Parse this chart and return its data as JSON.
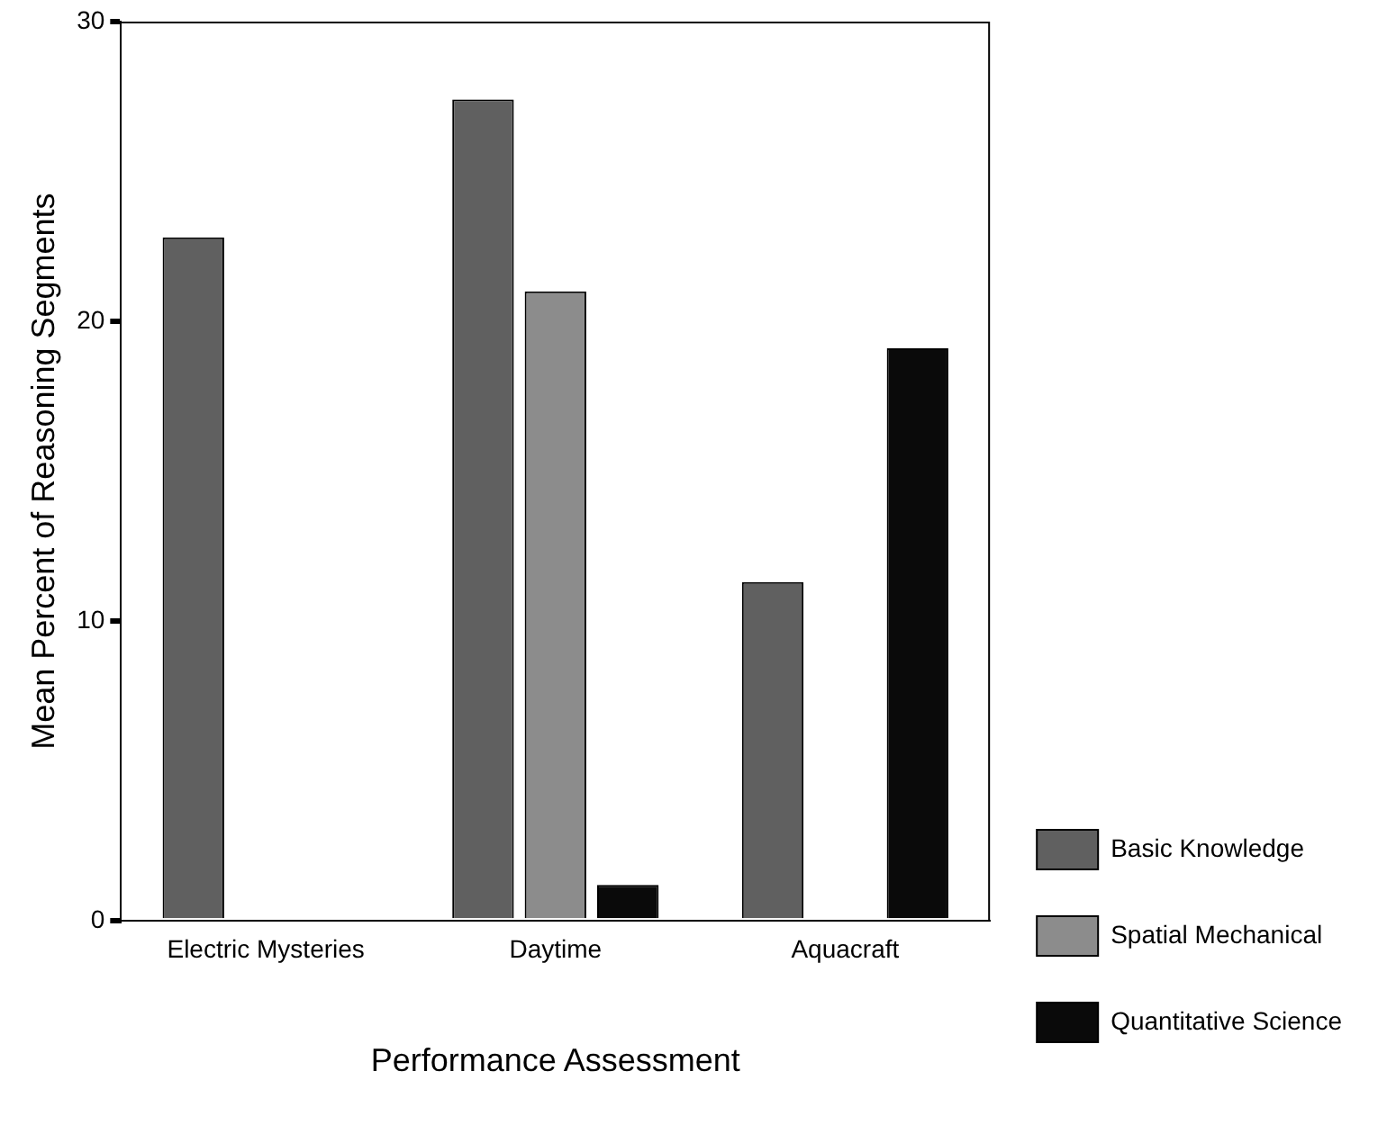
{
  "chart_data": {
    "type": "bar",
    "xlabel": "Performance Assessment",
    "ylabel": "Mean Percent of Reasoning Segments",
    "categories": [
      "Electric Mysteries",
      "Daytime",
      "Aquacraft"
    ],
    "series": [
      {
        "name": "Basic Knowledge",
        "color": "#606060",
        "values": [
          22.8,
          27.4,
          11.3
        ]
      },
      {
        "name": "Spatial Mechanical",
        "color": "#8c8c8c",
        "values": [
          0,
          21.0,
          0
        ]
      },
      {
        "name": "Quantitative Science",
        "color": "#0a0a0a",
        "values": [
          0,
          1.2,
          19.1
        ]
      }
    ],
    "ylim": [
      0,
      30
    ],
    "yticks": [
      0,
      10,
      20,
      30
    ],
    "grid": false,
    "legend": "right"
  }
}
